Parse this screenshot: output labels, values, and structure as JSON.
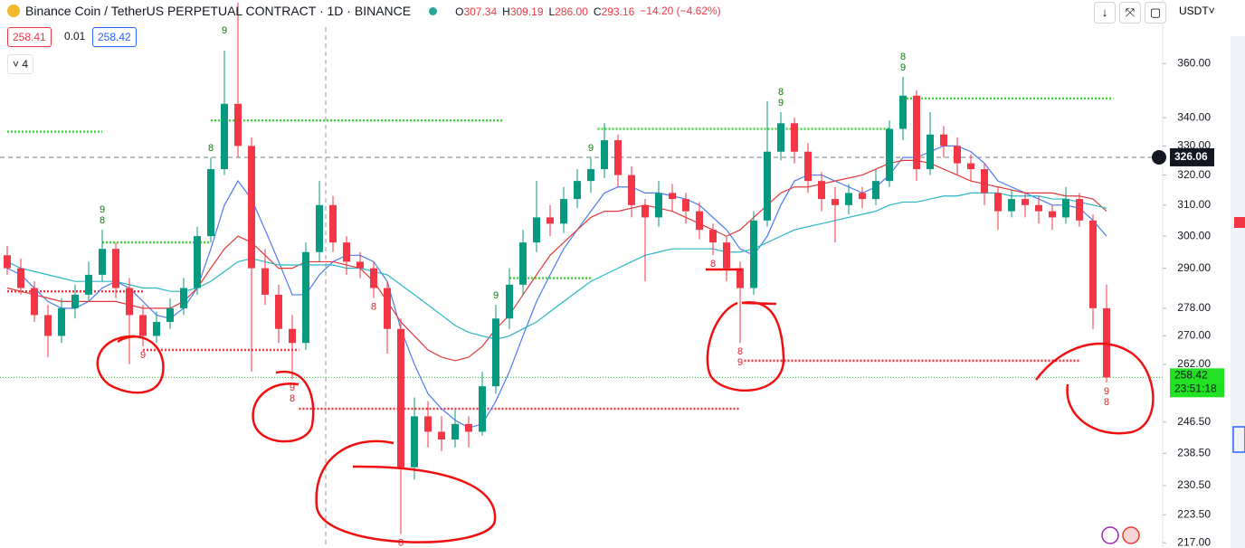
{
  "header": {
    "symbol": "Binance Coin / TetherUS PERPETUAL CONTRACT · 1D · BINANCE",
    "ohlc": [
      {
        "key": "O",
        "value": "307.34"
      },
      {
        "key": "H",
        "value": "309.19"
      },
      {
        "key": "L",
        "value": "286.00"
      },
      {
        "key": "C",
        "value": "293.16"
      }
    ],
    "change": "−14.20 (−4.62%)",
    "bid": "258.41",
    "spread": "0.01",
    "ask": "258.42",
    "indicators": "4",
    "currency": "USDT"
  },
  "chart_data": {
    "type": "candlestick",
    "log": true,
    "up_color": "#089981",
    "down_color": "#f23645",
    "ylim": [
      215.8,
      385
    ],
    "yticks": [
      {
        "value": 217,
        "label": "217.00"
      },
      {
        "value": 223.5,
        "label": "223.50"
      },
      {
        "value": 230.5,
        "label": "230.50"
      },
      {
        "value": 238.5,
        "label": "238.50"
      },
      {
        "value": 246.5,
        "label": "246.50"
      },
      {
        "value": 262,
        "label": "262.00"
      },
      {
        "value": 270,
        "label": "270.00"
      },
      {
        "value": 278,
        "label": "278.00"
      },
      {
        "value": 290,
        "label": "290.00"
      },
      {
        "value": 300,
        "label": "300.00"
      },
      {
        "value": 310,
        "label": "310.00"
      },
      {
        "value": 320,
        "label": "320.00"
      },
      {
        "value": 330,
        "label": "330.00"
      },
      {
        "value": 340,
        "label": "340.00"
      },
      {
        "value": 360,
        "label": "360.00"
      }
    ],
    "ohlc": [
      [
        294,
        297,
        288,
        290
      ],
      [
        290,
        293,
        282,
        284
      ],
      [
        284,
        286,
        274,
        276
      ],
      [
        276,
        279,
        264,
        270
      ],
      [
        270,
        281,
        268,
        278
      ],
      [
        278,
        285,
        275,
        282
      ],
      [
        282,
        292,
        280,
        288
      ],
      [
        288,
        302,
        286,
        296
      ],
      [
        296,
        298,
        281,
        284
      ],
      [
        284,
        287,
        262,
        276
      ],
      [
        276,
        279,
        267,
        270
      ],
      [
        270,
        277,
        268,
        274
      ],
      [
        274,
        281,
        272,
        278
      ],
      [
        278,
        287,
        276,
        284
      ],
      [
        284,
        303,
        282,
        300
      ],
      [
        300,
        326,
        298,
        322
      ],
      [
        322,
        365,
        320,
        345
      ],
      [
        345,
        384,
        326,
        330
      ],
      [
        330,
        333,
        260,
        290
      ],
      [
        290,
        296,
        279,
        282
      ],
      [
        282,
        285,
        268,
        272
      ],
      [
        272,
        276,
        258,
        268
      ],
      [
        268,
        298,
        266,
        295
      ],
      [
        295,
        318,
        292,
        310
      ],
      [
        310,
        313,
        295,
        298
      ],
      [
        298,
        300,
        288,
        292
      ],
      [
        292,
        295,
        287,
        290
      ],
      [
        290,
        292,
        281,
        284
      ],
      [
        284,
        286,
        265,
        272
      ],
      [
        272,
        275,
        219,
        235
      ],
      [
        235,
        253,
        232,
        248
      ],
      [
        248,
        252,
        240,
        244
      ],
      [
        244,
        248,
        239,
        242
      ],
      [
        242,
        250,
        240,
        246
      ],
      [
        246,
        248,
        240,
        244
      ],
      [
        244,
        260,
        243,
        256
      ],
      [
        256,
        279,
        254,
        275
      ],
      [
        275,
        290,
        272,
        285
      ],
      [
        285,
        302,
        282,
        298
      ],
      [
        298,
        318,
        295,
        306
      ],
      [
        306,
        310,
        300,
        304
      ],
      [
        304,
        316,
        301,
        312
      ],
      [
        312,
        322,
        309,
        318
      ],
      [
        318,
        326,
        314,
        322
      ],
      [
        322,
        338,
        319,
        332
      ],
      [
        332,
        334,
        316,
        320
      ],
      [
        320,
        323,
        306,
        310
      ],
      [
        310,
        312,
        286,
        306
      ],
      [
        306,
        318,
        303,
        314
      ],
      [
        314,
        317,
        308,
        312
      ],
      [
        312,
        314,
        304,
        308
      ],
      [
        308,
        311,
        299,
        302
      ],
      [
        302,
        304,
        294,
        298
      ],
      [
        298,
        300,
        286,
        290
      ],
      [
        290,
        292,
        268,
        284
      ],
      [
        284,
        308,
        282,
        305
      ],
      [
        305,
        346,
        303,
        328
      ],
      [
        328,
        342,
        325,
        338
      ],
      [
        338,
        340,
        324,
        328
      ],
      [
        328,
        331,
        314,
        318
      ],
      [
        318,
        321,
        308,
        312
      ],
      [
        312,
        316,
        298,
        310
      ],
      [
        310,
        317,
        307,
        314
      ],
      [
        314,
        316,
        309,
        312
      ],
      [
        312,
        322,
        310,
        318
      ],
      [
        318,
        339,
        316,
        336
      ],
      [
        336,
        355,
        332,
        348
      ],
      [
        348,
        350,
        318,
        322
      ],
      [
        322,
        342,
        320,
        334
      ],
      [
        334,
        337,
        326,
        330
      ],
      [
        330,
        333,
        320,
        324
      ],
      [
        324,
        327,
        318,
        322
      ],
      [
        322,
        324,
        310,
        314
      ],
      [
        314,
        316,
        302,
        308
      ],
      [
        308,
        315,
        306,
        312
      ],
      [
        312,
        314,
        306,
        310
      ],
      [
        310,
        313,
        304,
        308
      ],
      [
        308,
        310,
        302,
        306
      ],
      [
        306,
        316,
        304,
        312
      ],
      [
        312,
        314,
        303,
        305
      ],
      [
        305,
        307,
        272,
        278
      ],
      [
        278,
        285,
        257,
        258.42
      ]
    ],
    "moving_averages": [
      {
        "color": "#4a7bf0",
        "values": [
          290,
          288,
          284,
          280,
          278,
          278,
          280,
          284,
          286,
          284,
          280,
          276,
          275,
          278,
          284,
          296,
          310,
          318,
          312,
          302,
          292,
          282,
          282,
          288,
          292,
          294,
          294,
          292,
          286,
          272,
          262,
          254,
          250,
          247,
          245,
          246,
          252,
          260,
          270,
          280,
          288,
          296,
          302,
          308,
          314,
          316,
          316,
          314,
          314,
          313,
          312,
          310,
          306,
          302,
          296,
          294,
          300,
          310,
          318,
          320,
          320,
          318,
          316,
          314,
          316,
          320,
          326,
          326,
          328,
          330,
          330,
          328,
          324,
          318,
          316,
          314,
          312,
          310,
          310,
          309,
          305,
          300
        ]
      },
      {
        "color": "#e0393b",
        "values": [
          284,
          283,
          282,
          281,
          280,
          280,
          280,
          280,
          280,
          279,
          278,
          278,
          278,
          280,
          284,
          290,
          296,
          300,
          298,
          294,
          290,
          290,
          292,
          292,
          292,
          291,
          290,
          286,
          280,
          274,
          270,
          266,
          264,
          263,
          264,
          267,
          272,
          276,
          282,
          288,
          294,
          298,
          302,
          306,
          308,
          308,
          309,
          310,
          309,
          308,
          306,
          304,
          302,
          300,
          302,
          306,
          310,
          314,
          316,
          316,
          317,
          318,
          319,
          320,
          322,
          324,
          325,
          325,
          324,
          322,
          320,
          318,
          317,
          316,
          315,
          314,
          314,
          314,
          313,
          313,
          312,
          308
        ]
      },
      {
        "color": "#2ab7c4",
        "values": [
          292,
          290,
          289,
          288,
          287,
          286,
          286,
          286,
          286,
          285,
          284,
          284,
          283,
          283,
          284,
          286,
          289,
          292,
          293,
          292,
          291,
          291,
          291,
          291,
          291,
          290,
          290,
          289,
          288,
          285,
          282,
          279,
          276,
          273,
          271,
          270,
          269,
          270,
          272,
          274,
          277,
          280,
          283,
          286,
          288,
          290,
          292,
          294,
          295,
          296,
          296,
          296,
          296,
          295,
          295,
          296,
          298,
          300,
          302,
          303,
          304,
          305,
          306,
          307,
          308,
          310,
          311,
          311,
          312,
          313,
          313,
          314,
          314,
          314,
          313,
          313,
          313,
          312,
          312,
          311,
          310,
          309
        ]
      }
    ],
    "levels": [
      {
        "value": 335,
        "from": 0,
        "to": 7,
        "color": "#41d83a"
      },
      {
        "value": 298,
        "from": 7,
        "to": 15,
        "color": "#41d83a"
      },
      {
        "value": 339,
        "from": 15,
        "to": 36.5,
        "color": "#41d83a"
      },
      {
        "value": 287,
        "from": 37,
        "to": 43,
        "color": "#41d83a"
      },
      {
        "value": 336,
        "from": 43.5,
        "to": 65,
        "color": "#41d83a"
      },
      {
        "value": 347,
        "from": 66,
        "to": 81.5,
        "color": "#41d83a"
      },
      {
        "value": 283,
        "from": 0,
        "to": 10,
        "color": "#f23645"
      },
      {
        "value": 266,
        "from": 10,
        "to": 21.5,
        "color": "#f23645"
      },
      {
        "value": 250,
        "from": 21.5,
        "to": 54,
        "color": "#f23645"
      },
      {
        "value": 263,
        "from": 54.3,
        "to": 79
      },
      {
        "value": 263,
        "from": 54.3,
        "to": 79
      }
    ],
    "markers": [
      {
        "index": 7,
        "label": "8",
        "color": "#0a7a0a",
        "position": "above"
      },
      {
        "index": 7,
        "label": "9",
        "color": "#0a7a0a",
        "position": "above2"
      },
      {
        "index": 15,
        "label": "8",
        "color": "#0a7a0a",
        "position": "above"
      },
      {
        "index": 16,
        "label": "9",
        "color": "#0a7a0a",
        "position": "above2"
      },
      {
        "index": 36,
        "label": "9",
        "color": "#0a7a0a",
        "position": "above"
      },
      {
        "index": 43,
        "label": "9",
        "color": "#0a7a0a",
        "position": "above"
      },
      {
        "index": 57,
        "label": "8",
        "color": "#0a7a0a",
        "position": "above2"
      },
      {
        "index": 57,
        "label": "9",
        "color": "#0a7a0a",
        "position": "above"
      },
      {
        "index": 66,
        "label": "8",
        "color": "#0a7a0a",
        "position": "above2"
      },
      {
        "index": 66,
        "label": "9",
        "color": "#0a7a0a",
        "position": "above"
      },
      {
        "index": 10,
        "label": "9",
        "color": "#e0202a",
        "position": "below"
      },
      {
        "index": 21,
        "label": "9",
        "color": "#e0202a",
        "position": "below"
      },
      {
        "index": 21,
        "label": "8",
        "color": "#e0202a",
        "position": "below2"
      },
      {
        "index": 27,
        "label": "8",
        "color": "#e0202a",
        "position": "below"
      },
      {
        "index": 29,
        "label": "8",
        "color": "#e0202a",
        "position": "below"
      },
      {
        "index": 52,
        "label": "8",
        "color": "#e0202a",
        "position": "below"
      },
      {
        "index": 54,
        "label": "8",
        "color": "#e0202a",
        "position": "below"
      },
      {
        "index": 54,
        "label": "9",
        "color": "#e0202a",
        "position": "below2"
      },
      {
        "index": 81,
        "label": "9",
        "color": "#e0202a",
        "position": "below"
      },
      {
        "index": 81,
        "label": "8",
        "color": "#e0202a",
        "position": "below2"
      }
    ],
    "last_price": {
      "value": 258.42,
      "label": "258.42",
      "countdown": "23:51:18"
    },
    "crosshair": {
      "value": 326.06,
      "label": "326.06"
    }
  }
}
